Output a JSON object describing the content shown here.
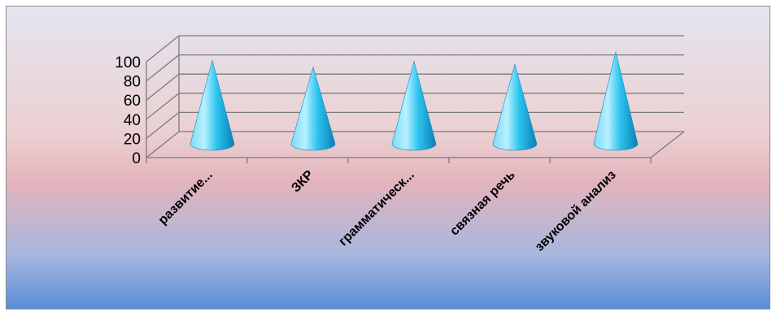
{
  "chart_data": {
    "type": "bar",
    "bar_shape": "cone",
    "three_d": true,
    "categories": [
      "развитие...",
      "ЗКР",
      "грамматическ...",
      "связная речь",
      "звуковой анализ"
    ],
    "values": [
      87,
      80,
      86,
      83,
      96
    ],
    "title": "",
    "xlabel": "",
    "ylabel": "",
    "ylim": [
      0,
      100
    ],
    "yticks": [
      0,
      20,
      40,
      60,
      80,
      100
    ],
    "grid": true,
    "legend": "none",
    "colors": {
      "cone_light": "#b8f0ff",
      "cone_mid": "#2cc3ee",
      "cone_dark": "#0a7fb6",
      "grid": "#7a7a7a",
      "background_top": "#e4e5ef",
      "background_middle": "#e3b4bc",
      "background_bottom": "#5b8fd8"
    }
  }
}
